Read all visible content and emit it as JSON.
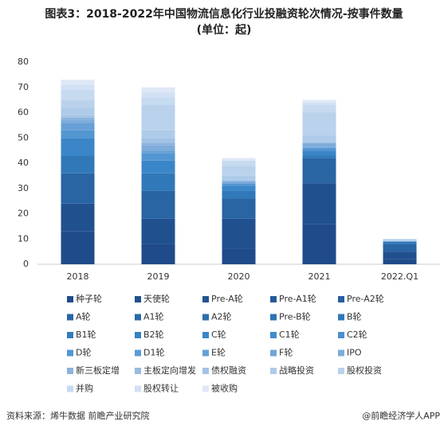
{
  "chart_data": {
    "type": "stacked_bar",
    "title": "图表3：2018-2022年中国物流信息化行业投融资轮次情况-按事件数量",
    "subtitle": "(单位：起)",
    "categories": [
      "2018",
      "2019",
      "2020",
      "2021",
      "2022.Q1"
    ],
    "ylim": [
      0,
      80
    ],
    "yticks": [
      0,
      10,
      20,
      30,
      40,
      50,
      60,
      70,
      80
    ],
    "grid": false,
    "series": [
      {
        "name": "种子轮",
        "color": "#1f4b8a",
        "values": [
          13,
          8,
          6,
          16,
          2
        ]
      },
      {
        "name": "天使轮",
        "color": "#21508f",
        "values": [
          11,
          10,
          12,
          16,
          3
        ]
      },
      {
        "name": "Pre-A轮",
        "color": "#235594",
        "values": [
          0,
          0,
          0,
          0,
          0
        ]
      },
      {
        "name": "Pre-A1轮",
        "color": "#255a99",
        "values": [
          0,
          0,
          0,
          0,
          0
        ]
      },
      {
        "name": "Pre-A2轮",
        "color": "#275f9e",
        "values": [
          0,
          0,
          0,
          0,
          0
        ]
      },
      {
        "name": "A轮",
        "color": "#2964a3",
        "values": [
          12,
          11,
          8,
          10,
          3
        ]
      },
      {
        "name": "A1轮",
        "color": "#2b69a8",
        "values": [
          0,
          0,
          0,
          0,
          0
        ]
      },
      {
        "name": "A2轮",
        "color": "#2d6ead",
        "values": [
          0,
          0,
          0,
          0,
          0
        ]
      },
      {
        "name": "Pre-B轮",
        "color": "#2f73b2",
        "values": [
          0,
          0,
          0,
          0,
          0
        ]
      },
      {
        "name": "B轮",
        "color": "#3178b8",
        "values": [
          7,
          7,
          3,
          1,
          1
        ]
      },
      {
        "name": "B1轮",
        "color": "#347dbd",
        "values": [
          0,
          0,
          0,
          0,
          0
        ]
      },
      {
        "name": "B2轮",
        "color": "#3782c3",
        "values": [
          0,
          0,
          0,
          0,
          0
        ]
      },
      {
        "name": "C轮",
        "color": "#3b86c8",
        "values": [
          7,
          5,
          2,
          2,
          0
        ]
      },
      {
        "name": "C1轮",
        "color": "#418bcc",
        "values": [
          0,
          0,
          0,
          0,
          0
        ]
      },
      {
        "name": "C2轮",
        "color": "#4990cf",
        "values": [
          0,
          0,
          0,
          0,
          0
        ]
      },
      {
        "name": "D轮",
        "color": "#5396d2",
        "values": [
          3,
          3,
          1,
          1,
          0
        ]
      },
      {
        "name": "D1轮",
        "color": "#5d9bd4",
        "values": [
          0,
          0,
          0,
          0,
          0
        ]
      },
      {
        "name": "E轮",
        "color": "#67a0d6",
        "values": [
          3,
          1,
          0,
          0,
          0
        ]
      },
      {
        "name": "F轮",
        "color": "#72a6d9",
        "values": [
          0,
          0,
          0,
          0,
          0
        ]
      },
      {
        "name": "IPO",
        "color": "#7eacdb",
        "values": [
          1,
          2,
          1,
          2,
          0
        ]
      },
      {
        "name": "新三板定增",
        "color": "#8ab3de",
        "values": [
          1,
          1,
          0,
          0,
          0
        ]
      },
      {
        "name": "主板定向增发",
        "color": "#96bbe1",
        "values": [
          0,
          0,
          0,
          0,
          0
        ]
      },
      {
        "name": "债权融资",
        "color": "#a2c3e5",
        "values": [
          1,
          2,
          0,
          0,
          0
        ]
      },
      {
        "name": "战略投资",
        "color": "#aecbe9",
        "values": [
          3,
          3,
          2,
          3,
          0
        ]
      },
      {
        "name": "股权投资",
        "color": "#bad2ec",
        "values": [
          3,
          10,
          4,
          9,
          1
        ]
      },
      {
        "name": "并购",
        "color": "#c6daf0",
        "values": [
          4,
          3,
          2,
          3,
          0
        ]
      },
      {
        "name": "股权转让",
        "color": "#d2e1f3",
        "values": [
          2,
          2,
          0,
          1,
          0
        ]
      },
      {
        "name": "被收购",
        "color": "#dee8f7",
        "values": [
          2,
          2,
          1,
          1,
          0
        ]
      }
    ],
    "source": "资料来源：烯牛数据 前瞻产业研究院",
    "brand": "@前瞻经济学人APP"
  }
}
